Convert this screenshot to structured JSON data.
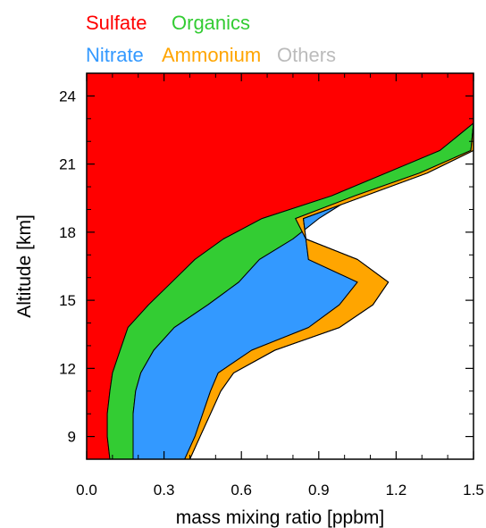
{
  "chart_data": {
    "type": "area",
    "stacked": true,
    "orientation": "horizontal",
    "xlabel": "mass mixing ratio [ppbm]",
    "ylabel": "Altitude [km]",
    "xlim": [
      0,
      1.5
    ],
    "ylim": [
      8,
      25
    ],
    "x_ticks": [
      "0.0",
      "0.3",
      "0.6",
      "0.9",
      "1.2",
      "1.5"
    ],
    "y_ticks": [
      "9",
      "12",
      "15",
      "18",
      "21",
      "24"
    ],
    "x_tick_values": [
      0,
      0.3,
      0.6,
      0.9,
      1.2,
      1.5
    ],
    "y_tick_values": [
      9,
      12,
      15,
      18,
      21,
      24
    ],
    "altitude": [
      8.0,
      9.0,
      10.0,
      11.0,
      11.8,
      12.8,
      13.8,
      14.8,
      15.8,
      16.8,
      17.7,
      18.6,
      19.6,
      20.6,
      21.6,
      22.8,
      24.0,
      25.0
    ],
    "series": [
      {
        "name": "Sulfate",
        "color": "#ff0000",
        "cumulative": [
          0.09,
          0.08,
          0.08,
          0.09,
          0.1,
          0.13,
          0.16,
          0.24,
          0.33,
          0.42,
          0.53,
          0.68,
          0.95,
          1.16,
          1.37,
          1.5,
          1.5,
          1.5
        ]
      },
      {
        "name": "Organics",
        "color": "#33cc33",
        "cumulative": [
          0.18,
          0.18,
          0.18,
          0.19,
          0.21,
          0.26,
          0.34,
          0.47,
          0.59,
          0.67,
          0.8,
          0.9,
          1.04,
          1.29,
          1.49,
          1.5,
          1.5,
          1.5
        ]
      },
      {
        "name": "Nitrate",
        "color": "#3399ff",
        "cumulative": [
          0.38,
          0.42,
          0.45,
          0.48,
          0.51,
          0.64,
          0.86,
          0.98,
          1.05,
          0.86,
          0.85,
          0.81,
          1.04,
          1.29,
          1.49,
          1.5,
          1.5,
          1.5
        ]
      },
      {
        "name": "Ammonium",
        "color": "#ffa500",
        "cumulative": [
          0.4,
          0.44,
          0.48,
          0.52,
          0.57,
          0.73,
          0.98,
          1.11,
          1.17,
          1.05,
          0.85,
          0.84,
          1.08,
          1.32,
          1.5,
          1.5,
          1.5,
          1.5
        ]
      },
      {
        "name": "Others",
        "color": "#bbbbbb",
        "cumulative": [
          0.4,
          0.44,
          0.48,
          0.52,
          0.57,
          0.73,
          0.98,
          1.11,
          1.17,
          1.05,
          0.85,
          0.84,
          1.08,
          1.32,
          1.5,
          1.5,
          1.5,
          1.5
        ]
      }
    ]
  }
}
